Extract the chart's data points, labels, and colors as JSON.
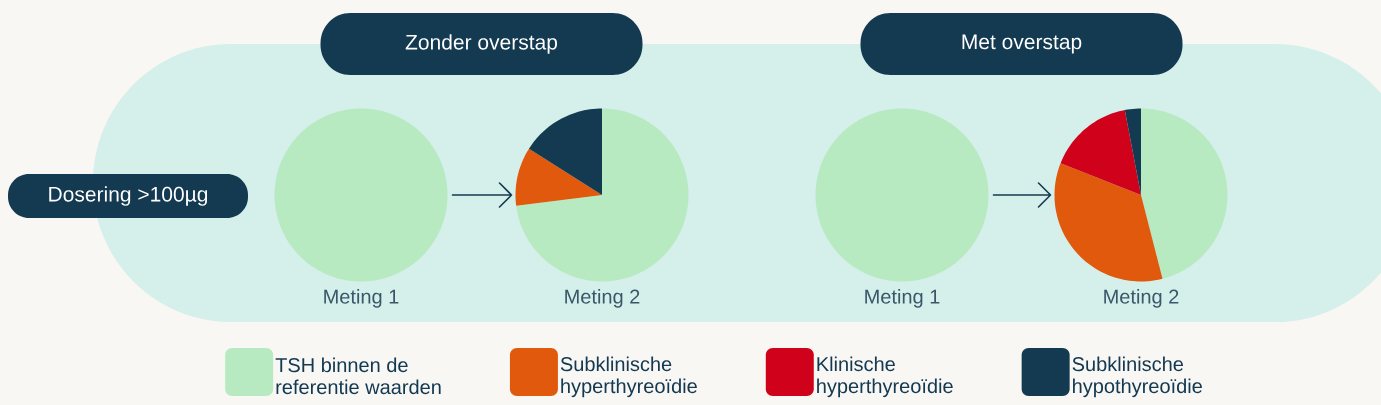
{
  "chart_data": [
    {
      "type": "pie",
      "title": "Meting 1",
      "subtitle": "Zonder overstap",
      "annotations": [
        "Dosering >100µg"
      ],
      "categories": [
        null
      ],
      "values": [
        100
      ],
      "colors": [
        "#b8eac2"
      ]
    },
    {
      "type": "pie",
      "title": "Meting 2",
      "categories": [
        null,
        null,
        null
      ],
      "values": [
        73,
        11,
        16
      ],
      "colors": [
        "#b8eac2",
        "#e0590c",
        "#143a52"
      ]
    },
    {
      "type": "pie",
      "title": "Meting 1",
      "subtitle": "Met overstap",
      "categories": [
        null
      ],
      "values": [
        100
      ],
      "colors": [
        "#b8eac2"
      ]
    },
    {
      "type": "pie",
      "title": "Meting 2",
      "categories": [
        "TSH binnen de referentie waarden",
        "Subklinische hyperthyreoïdie",
        "Klinische hyperthyreoïdie",
        "Subklinische hypothyreoïdie"
      ],
      "values": [
        46,
        35,
        16,
        3
      ],
      "colors": [
        "#b8eac2",
        "#e0590c",
        "#d0021b",
        "#143a52"
      ],
      "legend": "bottom"
    }
  ]
}
